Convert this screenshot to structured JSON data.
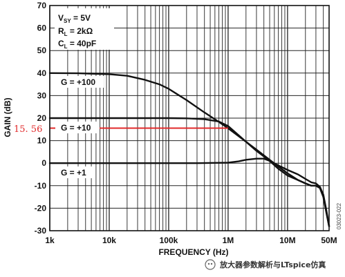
{
  "chart_data": {
    "type": "line",
    "title": "",
    "xlabel": "FREQUENCY (Hz)",
    "ylabel": "GAIN (dB)",
    "xscale": "log",
    "xlim": [
      1000,
      50000000
    ],
    "ylim": [
      -30,
      70
    ],
    "x_ticks": [
      {
        "v": 1000,
        "label": "1k"
      },
      {
        "v": 10000,
        "label": "10k"
      },
      {
        "v": 100000,
        "label": "100k"
      },
      {
        "v": 1000000,
        "label": "1M"
      },
      {
        "v": 10000000,
        "label": "10M"
      },
      {
        "v": 50000000,
        "label": "50M"
      }
    ],
    "y_ticks": [
      70,
      60,
      50,
      40,
      30,
      20,
      10,
      0,
      -10,
      -20,
      -30
    ],
    "grid": true,
    "conditions": {
      "vsy_prefix": "V",
      "vsy_sub": "SY",
      "vsy_value": " = 5V",
      "rl_prefix": "R",
      "rl_sub": "L",
      "rl_value": " = 2kΩ",
      "cl_prefix": "C",
      "cl_sub": "L",
      "cl_value": " = 40pF"
    },
    "series": [
      {
        "name": "G = +100",
        "x": [
          1000,
          3000,
          10000,
          20000,
          40000,
          70000,
          100000,
          200000,
          400000,
          700000,
          1000000,
          2000000,
          3000000,
          5000000,
          7000000,
          10000000,
          15000000,
          20000000,
          25000000,
          30000000,
          35000000,
          40000000,
          45000000,
          50000000
        ],
        "y": [
          40,
          39.9,
          39.5,
          38.8,
          37,
          35,
          33,
          28,
          22.5,
          18.3,
          15.5,
          9.5,
          6,
          1.5,
          -1.5,
          -4.5,
          -7.5,
          -9,
          -10,
          -10,
          -11,
          -15,
          -22,
          -28
        ]
      },
      {
        "name": "G = +10",
        "x": [
          1000,
          10000,
          100000,
          200000,
          400000,
          700000,
          1000000,
          2000000,
          3000000,
          5000000,
          7000000,
          10000000,
          15000000,
          20000000,
          25000000,
          30000000,
          35000000,
          40000000,
          45000000,
          50000000
        ],
        "y": [
          20,
          20,
          20,
          19.9,
          19.5,
          18.5,
          16.5,
          9.5,
          5.5,
          1,
          -2.5,
          -5.5,
          -7.5,
          -9,
          -10,
          -10,
          -11,
          -15,
          -22,
          -28
        ]
      },
      {
        "name": "G = +1",
        "x": [
          1000,
          10000,
          100000,
          300000,
          1000000,
          1500000,
          2000000,
          3000000,
          4000000,
          5000000,
          7000000,
          10000000,
          15000000,
          20000000,
          25000000,
          30000000,
          35000000,
          40000000,
          45000000,
          50000000
        ],
        "y": [
          0,
          0,
          0,
          0,
          0.2,
          0.8,
          1.5,
          2,
          2,
          1,
          -1,
          -3,
          -5,
          -7,
          -8.5,
          -9,
          -10.5,
          -14,
          -21,
          -28
        ]
      }
    ],
    "annotations": {
      "marker_value": 15.56,
      "marker_text": "15. 56",
      "marker_color": "#e0282a",
      "curve_color": "#111111",
      "figure_id": "03023-022",
      "watermark": "放大器参数解析与LTspice仿真"
    }
  }
}
